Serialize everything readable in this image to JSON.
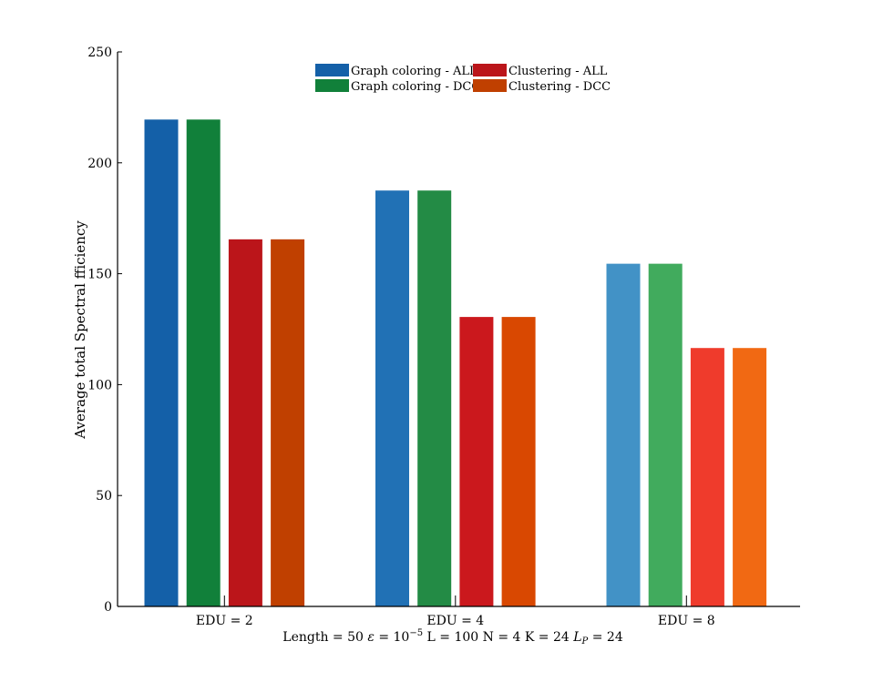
{
  "chart_data": {
    "type": "bar",
    "ylabel": "Average total Spectral fficiency",
    "xlabel_parts": {
      "p1": "Length = 50 ",
      "eps": "ε",
      "p2": " = 10",
      "exp": "−5",
      "p3": " L = 100 N = 4 K = 24 ",
      "lp": "L",
      "lpsub": "P",
      "p4": " = 24"
    },
    "categories": [
      "EDU = 2",
      "EDU = 4",
      "EDU = 8"
    ],
    "ylim": [
      0,
      250
    ],
    "yticks": [
      "0",
      "50",
      "100",
      "150",
      "200",
      "250"
    ],
    "grid": false,
    "legend_position": "top-center",
    "series": [
      {
        "name": "Graph coloring - ALL",
        "values": [
          219.5,
          187.5,
          154.5
        ],
        "colors": [
          "#1460a8",
          "#2171b5",
          "#4292c6"
        ],
        "legend_color": "#1460a8"
      },
      {
        "name": "Graph coloring - DCC",
        "values": [
          219.5,
          187.5,
          154.5
        ],
        "colors": [
          "#11803a",
          "#238b45",
          "#41ab5d"
        ],
        "legend_color": "#11803a"
      },
      {
        "name": "Clustering - ALL",
        "values": [
          165.5,
          130.5,
          116.5
        ],
        "colors": [
          "#bb151a",
          "#cb181d",
          "#ef3b2c"
        ],
        "legend_color": "#bb151a"
      },
      {
        "name": "Clustering - DCC",
        "values": [
          165.5,
          130.5,
          116.5
        ],
        "colors": [
          "#c04000",
          "#d94801",
          "#f16913"
        ],
        "legend_color": "#c04000"
      }
    ]
  }
}
